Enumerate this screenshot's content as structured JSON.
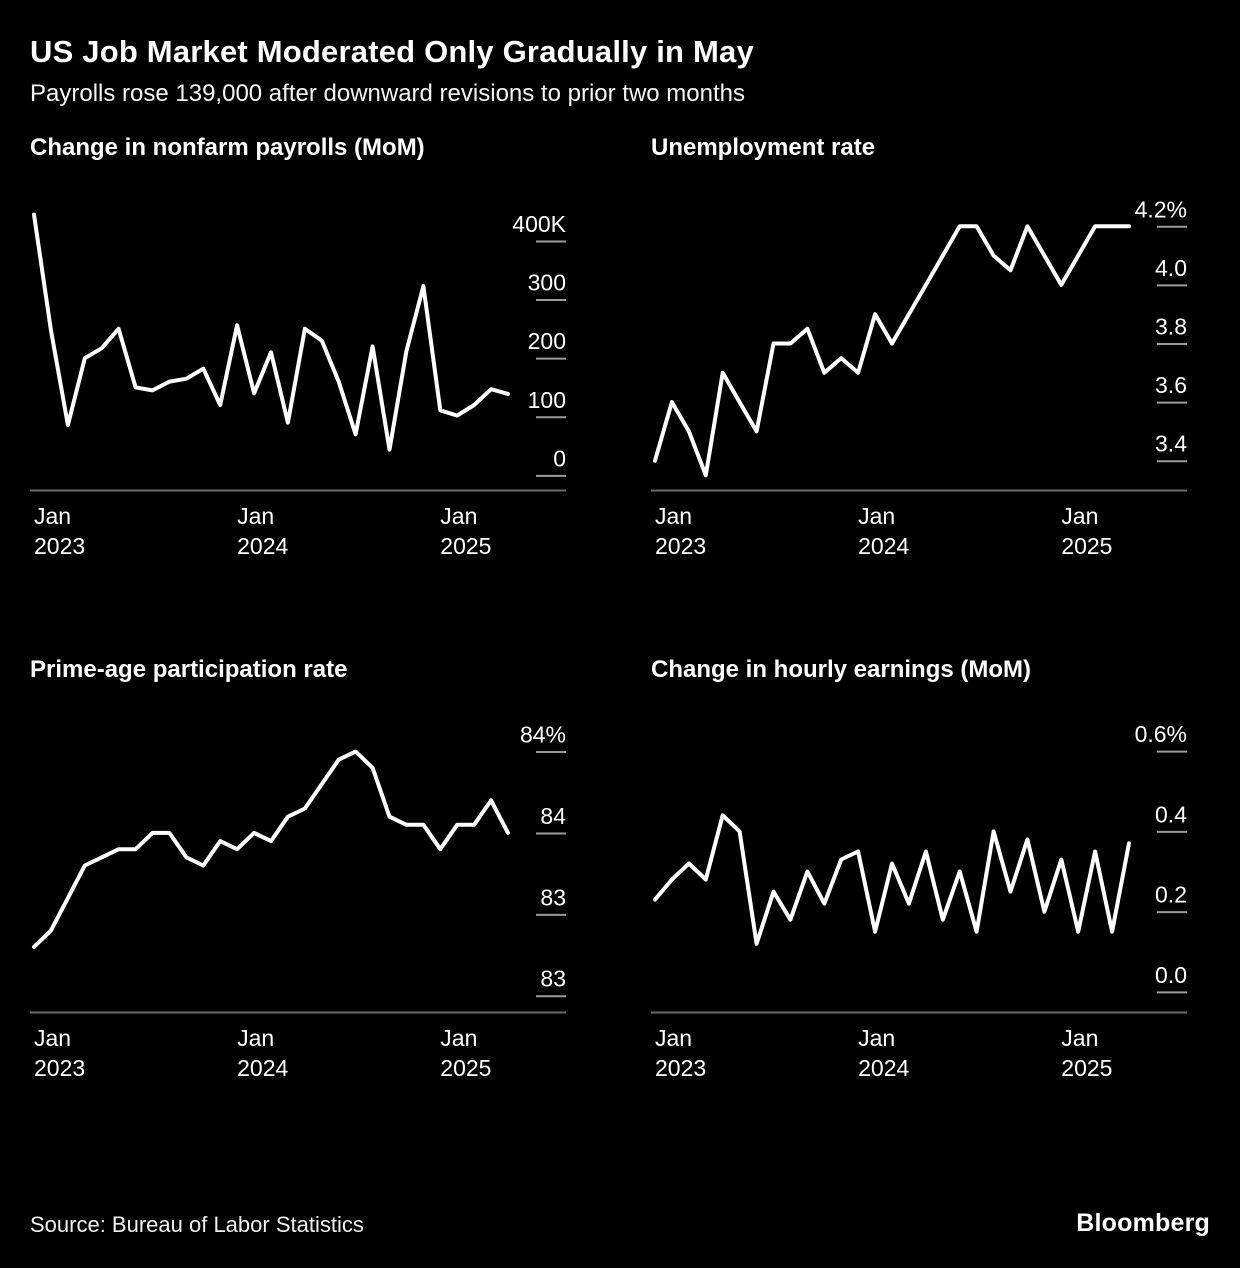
{
  "header": {
    "title": "US Job Market Moderated Only Gradually in May",
    "subtitle": "Payrolls rose 139,000 after downward revisions to prior two months"
  },
  "footer": {
    "source": "Source: Bureau of Labor Statistics",
    "brand": "Bloomberg"
  },
  "colors": {
    "background": "#000000",
    "text": "#ffffff",
    "line": "#ffffff",
    "axis": "#6a6a6a",
    "tick": "#9a9a9a"
  },
  "chart_data": [
    {
      "type": "line",
      "title": "Change in nonfarm payrolls (MoM)",
      "unit": "thousands of jobs",
      "x_range": "Jan 2023 - May 2025 (monthly)",
      "values": [
        445,
        248,
        86,
        200,
        217,
        250,
        150,
        145,
        160,
        165,
        182,
        120,
        256,
        140,
        210,
        90,
        250,
        230,
        160,
        70,
        220,
        44,
        212,
        323,
        111,
        102,
        120,
        147,
        139
      ],
      "ylim": [
        -25,
        475
      ],
      "yticks": [
        {
          "value": 400,
          "label": "400K"
        },
        {
          "value": 300,
          "label": "300"
        },
        {
          "value": 200,
          "label": "200"
        },
        {
          "value": 100,
          "label": "100"
        },
        {
          "value": 0,
          "label": "0"
        }
      ],
      "xticks": [
        {
          "index": 0,
          "line1": "Jan",
          "line2": "2023"
        },
        {
          "index": 12,
          "line1": "Jan",
          "line2": "2024"
        },
        {
          "index": 24,
          "line1": "Jan",
          "line2": "2025"
        }
      ]
    },
    {
      "type": "line",
      "title": "Unemployment rate",
      "unit": "percent",
      "x_range": "Jan 2023 - May 2025 (monthly)",
      "values": [
        3.4,
        3.6,
        3.5,
        3.35,
        3.7,
        3.6,
        3.5,
        3.8,
        3.8,
        3.85,
        3.7,
        3.75,
        3.7,
        3.9,
        3.8,
        3.9,
        4.0,
        4.1,
        4.2,
        4.2,
        4.1,
        4.05,
        4.2,
        4.1,
        4.0,
        4.1,
        4.2,
        4.2,
        4.2
      ],
      "ylim": [
        3.3,
        4.3
      ],
      "yticks": [
        {
          "value": 4.2,
          "label": "4.2%"
        },
        {
          "value": 4.0,
          "label": "4.0"
        },
        {
          "value": 3.8,
          "label": "3.8"
        },
        {
          "value": 3.6,
          "label": "3.6"
        },
        {
          "value": 3.4,
          "label": "3.4"
        }
      ],
      "xticks": [
        {
          "index": 0,
          "line1": "Jan",
          "line2": "2023"
        },
        {
          "index": 12,
          "line1": "Jan",
          "line2": "2024"
        },
        {
          "index": 24,
          "line1": "Jan",
          "line2": "2025"
        }
      ]
    },
    {
      "type": "line",
      "title": "Prime-age participation rate",
      "unit": "percent",
      "x_range": "Jan 2023 - May 2025 (monthly)",
      "values": [
        82.8,
        82.9,
        83.1,
        83.3,
        83.35,
        83.4,
        83.4,
        83.5,
        83.5,
        83.35,
        83.3,
        83.45,
        83.4,
        83.5,
        83.45,
        83.6,
        83.65,
        83.8,
        83.95,
        84.0,
        83.9,
        83.6,
        83.55,
        83.55,
        83.4,
        83.55,
        83.55,
        83.7,
        83.5
      ],
      "ylim": [
        82.4,
        84.2
      ],
      "yticks": [
        {
          "value": 84.0,
          "label": "84%"
        },
        {
          "value": 83.5,
          "label": "84"
        },
        {
          "value": 83.0,
          "label": "83"
        },
        {
          "value": 82.5,
          "label": "83"
        }
      ],
      "xticks": [
        {
          "index": 0,
          "line1": "Jan",
          "line2": "2023"
        },
        {
          "index": 12,
          "line1": "Jan",
          "line2": "2024"
        },
        {
          "index": 24,
          "line1": "Jan",
          "line2": "2025"
        }
      ]
    },
    {
      "type": "line",
      "title": "Change in hourly earnings (MoM)",
      "unit": "percent",
      "x_range": "Jan 2023 - May 2025 (monthly)",
      "values": [
        0.23,
        0.28,
        0.32,
        0.28,
        0.44,
        0.4,
        0.12,
        0.25,
        0.18,
        0.3,
        0.22,
        0.33,
        0.35,
        0.15,
        0.32,
        0.22,
        0.35,
        0.18,
        0.3,
        0.15,
        0.4,
        0.25,
        0.38,
        0.2,
        0.33,
        0.15,
        0.35,
        0.15,
        0.37
      ],
      "ylim": [
        -0.05,
        0.68
      ],
      "yticks": [
        {
          "value": 0.6,
          "label": "0.6%"
        },
        {
          "value": 0.4,
          "label": "0.4"
        },
        {
          "value": 0.2,
          "label": "0.2"
        },
        {
          "value": 0.0,
          "label": "0.0"
        }
      ],
      "xticks": [
        {
          "index": 0,
          "line1": "Jan",
          "line2": "2023"
        },
        {
          "index": 12,
          "line1": "Jan",
          "line2": "2024"
        },
        {
          "index": 24,
          "line1": "Jan",
          "line2": "2025"
        }
      ]
    }
  ]
}
